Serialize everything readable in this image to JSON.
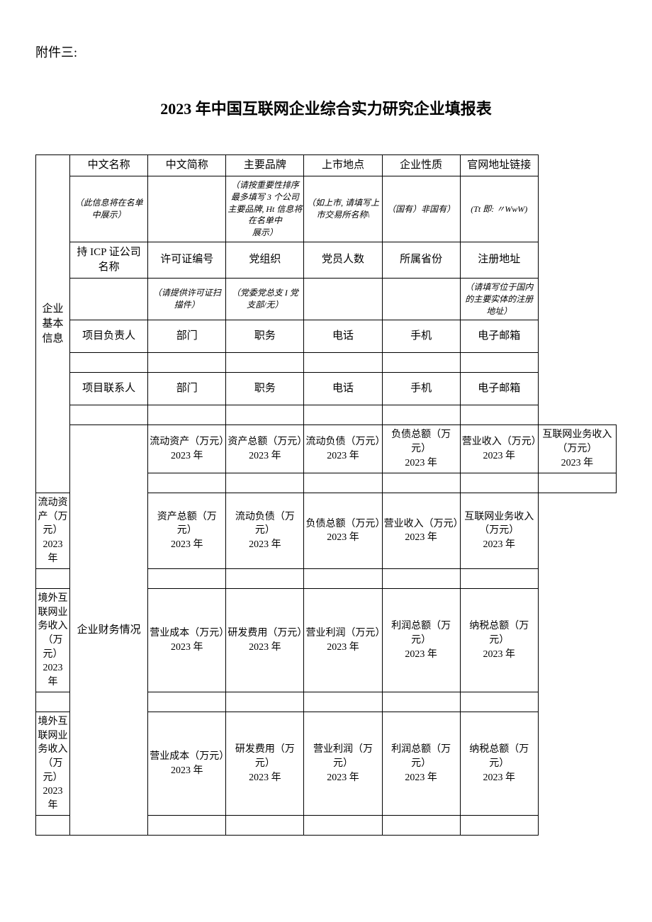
{
  "attachment_label": "附件三:",
  "title": "2023 年中国互联网企业综合实力研究企业填报表",
  "section1": {
    "side_label": "企业基本信息",
    "row1": [
      "中文名称",
      "中文简称",
      "主要品牌",
      "上市地点",
      "企业性质",
      "官网地址链接"
    ],
    "row2": [
      "（此信息将在名单中展示）",
      "",
      "（请按重要性排序最多填写 3 个公司主要品牌, Ht 信息将在名单中\n展示）",
      "（如上市, 请填写上市交易所名称\\",
      "（国有）非国有）",
      "(Tt 即: 〃WwW)"
    ],
    "row3": [
      "持 ICP 证公司名称",
      "许可证编号",
      "党组织",
      "党员人数",
      "所属省份",
      "注册地址"
    ],
    "row4": [
      "",
      "（请提供许可证扫描件）",
      "（党委党总支 I 党支部/无）",
      "",
      "",
      "（请填写位于国内的主要实体的注册地址）"
    ],
    "row5": [
      "项目负责人",
      "部门",
      "职务",
      "电话",
      "手机",
      "电子邮箱"
    ],
    "row7": [
      "项目联系人",
      "部门",
      "职务",
      "电话",
      "手机",
      "电子邮箱"
    ]
  },
  "section2": {
    "side_label": "企业财务情况",
    "row1": [
      "流动资产（万元）2023 年",
      "资产总额（万元）2023 年",
      "流动负债（万元）2023 年",
      "负债总额（万元）\n2023 年",
      "营业收入（万元）2023 年",
      "互联网业务收入（万元）\n2023 年"
    ],
    "row3": [
      "流动资产（万元）2023 年",
      "资产总额（万元）\n2023 年",
      "流动负债（万元）\n2023 年",
      "负债总额（万元）2023 年",
      "营业收入（万元）2023 年",
      "互联网业务收入（万元）\n2023 年"
    ],
    "row5": [
      "境外互联网业务收入（万元）\n2023 年",
      "营业成本（万元）2023 年",
      "研发费用（万元）2023 年",
      "营业利润（万元）2023 年",
      "利润总额（万元）\n2023 年",
      "纳税总额（万元）\n2023 年"
    ],
    "row7": [
      "境外互联网业务收入（万元）\n2023 年",
      "营业成本（万元）2023 年",
      "研发费用（万元）\n2023 年",
      "营业利润（万元）\n2023 年",
      "利润总额（万元）\n2023 年",
      "纳税总额（万元）\n2023 年"
    ]
  }
}
